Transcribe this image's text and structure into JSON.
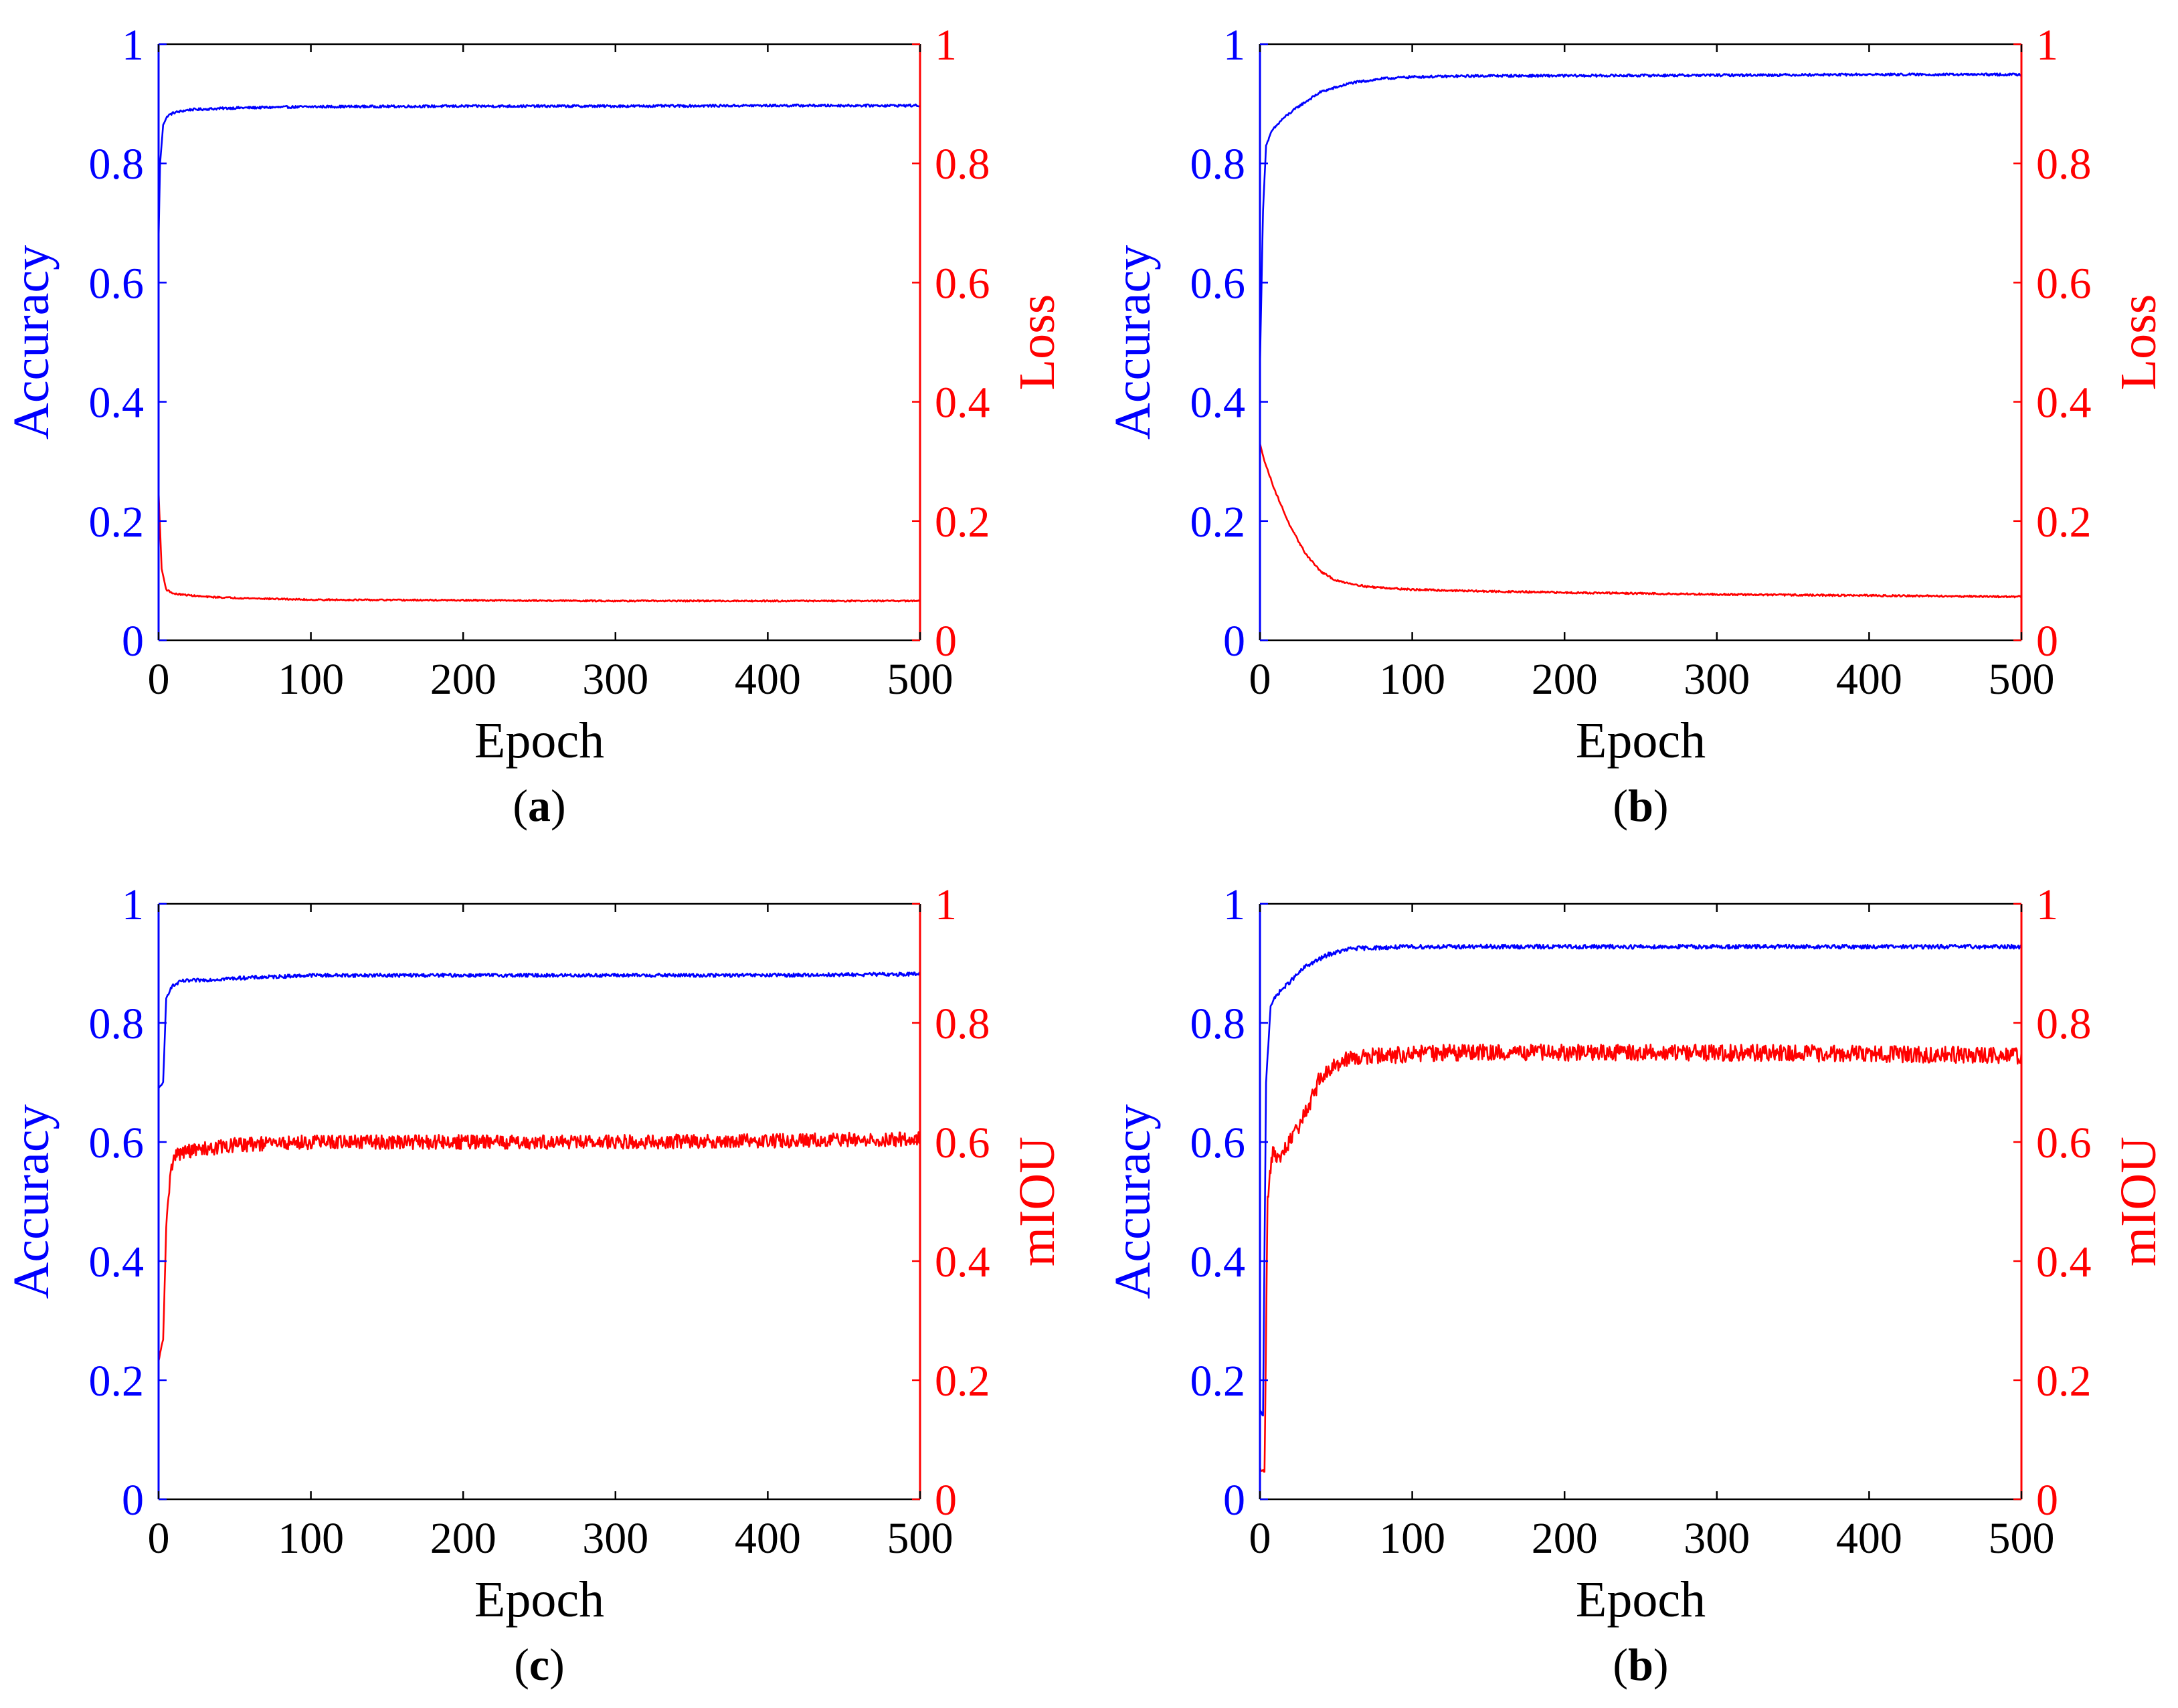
{
  "colors": {
    "left_axis": "#0000ff",
    "right_axis": "#ff0000",
    "frame": "#000000"
  },
  "chart_data": [
    {
      "type": "line",
      "panel_label": "a",
      "xlabel": "Epoch",
      "ylabel_left": "Accuracy",
      "ylabel_right": "Loss",
      "xlim": [
        0,
        500
      ],
      "ylim_left": [
        0,
        1
      ],
      "ylim_right": [
        0,
        1
      ],
      "x_ticks": [
        "0",
        "100",
        "200",
        "300",
        "400",
        "500"
      ],
      "y_ticks_left": [
        "0",
        "0.2",
        "0.4",
        "0.6",
        "0.8",
        "1"
      ],
      "y_ticks_right": [
        "0",
        "0.2",
        "0.4",
        "0.6",
        "0.8",
        "1"
      ],
      "series": [
        {
          "name": "Accuracy",
          "axis": "left",
          "color": "#0000ff",
          "noise": 0.002,
          "points": [
            [
              0,
              0.67
            ],
            [
              1,
              0.8
            ],
            [
              3,
              0.865
            ],
            [
              6,
              0.88
            ],
            [
              10,
              0.885
            ],
            [
              20,
              0.89
            ],
            [
              50,
              0.893
            ],
            [
              100,
              0.895
            ],
            [
              200,
              0.896
            ],
            [
              300,
              0.896
            ],
            [
              400,
              0.897
            ],
            [
              500,
              0.897
            ]
          ]
        },
        {
          "name": "Loss",
          "axis": "right",
          "color": "#ff0000",
          "noise": 0.0012,
          "points": [
            [
              0,
              0.25
            ],
            [
              2,
              0.12
            ],
            [
              5,
              0.085
            ],
            [
              10,
              0.078
            ],
            [
              30,
              0.073
            ],
            [
              50,
              0.071
            ],
            [
              100,
              0.068
            ],
            [
              200,
              0.067
            ],
            [
              300,
              0.066
            ],
            [
              400,
              0.066
            ],
            [
              500,
              0.066
            ]
          ]
        }
      ]
    },
    {
      "type": "line",
      "panel_label": "b",
      "xlabel": "Epoch",
      "ylabel_left": "Accuracy",
      "ylabel_right": "Loss",
      "xlim": [
        0,
        500
      ],
      "ylim_left": [
        0,
        1
      ],
      "ylim_right": [
        0,
        1
      ],
      "x_ticks": [
        "0",
        "100",
        "200",
        "300",
        "400",
        "500"
      ],
      "y_ticks_left": [
        "0",
        "0.2",
        "0.4",
        "0.6",
        "0.8",
        "1"
      ],
      "y_ticks_right": [
        "0",
        "0.2",
        "0.4",
        "0.6",
        "0.8",
        "1"
      ],
      "series": [
        {
          "name": "Accuracy",
          "axis": "left",
          "color": "#0000ff",
          "noise": 0.002,
          "points": [
            [
              0,
              0.46
            ],
            [
              2,
              0.72
            ],
            [
              4,
              0.83
            ],
            [
              8,
              0.855
            ],
            [
              15,
              0.875
            ],
            [
              25,
              0.895
            ],
            [
              40,
              0.92
            ],
            [
              60,
              0.935
            ],
            [
              80,
              0.942
            ],
            [
              100,
              0.945
            ],
            [
              150,
              0.947
            ],
            [
              200,
              0.947
            ],
            [
              300,
              0.948
            ],
            [
              400,
              0.949
            ],
            [
              500,
              0.949
            ]
          ]
        },
        {
          "name": "Loss",
          "axis": "right",
          "color": "#ff0000",
          "noise": 0.0015,
          "points": [
            [
              0,
              0.33
            ],
            [
              3,
              0.3
            ],
            [
              10,
              0.25
            ],
            [
              20,
              0.19
            ],
            [
              30,
              0.145
            ],
            [
              40,
              0.115
            ],
            [
              50,
              0.1
            ],
            [
              70,
              0.09
            ],
            [
              100,
              0.085
            ],
            [
              150,
              0.082
            ],
            [
              200,
              0.08
            ],
            [
              300,
              0.077
            ],
            [
              400,
              0.075
            ],
            [
              500,
              0.073
            ]
          ]
        }
      ]
    },
    {
      "type": "line",
      "panel_label": "c",
      "xlabel": "Epoch",
      "ylabel_left": "Accuracy",
      "ylabel_right": "mIOU",
      "xlim": [
        0,
        500
      ],
      "ylim_left": [
        0,
        1
      ],
      "ylim_right": [
        0,
        1
      ],
      "x_ticks": [
        "0",
        "100",
        "200",
        "300",
        "400",
        "500"
      ],
      "y_ticks_left": [
        "0",
        "0.2",
        "0.4",
        "0.6",
        "0.8",
        "1"
      ],
      "y_ticks_right": [
        "0",
        "0.2",
        "0.4",
        "0.6",
        "0.8",
        "1"
      ],
      "series": [
        {
          "name": "Accuracy",
          "axis": "left",
          "color": "#0000ff",
          "noise": 0.003,
          "points": [
            [
              0,
              0.69
            ],
            [
              3,
              0.7
            ],
            [
              5,
              0.84
            ],
            [
              8,
              0.86
            ],
            [
              15,
              0.87
            ],
            [
              50,
              0.875
            ],
            [
              100,
              0.88
            ],
            [
              200,
              0.88
            ],
            [
              300,
              0.88
            ],
            [
              400,
              0.88
            ],
            [
              500,
              0.882
            ]
          ]
        },
        {
          "name": "mIOU",
          "axis": "right",
          "color": "#ff0000",
          "noise": 0.012,
          "points": [
            [
              0,
              0.23
            ],
            [
              3,
              0.27
            ],
            [
              5,
              0.45
            ],
            [
              8,
              0.56
            ],
            [
              12,
              0.58
            ],
            [
              20,
              0.585
            ],
            [
              50,
              0.595
            ],
            [
              100,
              0.6
            ],
            [
              200,
              0.6
            ],
            [
              300,
              0.6
            ],
            [
              400,
              0.602
            ],
            [
              500,
              0.605
            ]
          ]
        }
      ]
    },
    {
      "type": "line",
      "panel_label": "b",
      "xlabel": "Epoch",
      "ylabel_left": "Accuracy",
      "ylabel_right": "mIOU",
      "xlim": [
        0,
        500
      ],
      "ylim_left": [
        0,
        1
      ],
      "ylim_right": [
        0,
        1
      ],
      "x_ticks": [
        "0",
        "100",
        "200",
        "300",
        "400",
        "500"
      ],
      "y_ticks_left": [
        "0",
        "0.2",
        "0.4",
        "0.6",
        "0.8",
        "1"
      ],
      "y_ticks_right": [
        "0",
        "0.2",
        "0.4",
        "0.6",
        "0.8",
        "1"
      ],
      "series": [
        {
          "name": "Accuracy",
          "axis": "left",
          "color": "#0000ff",
          "noise": 0.0035,
          "points": [
            [
              0,
              0.15
            ],
            [
              2,
              0.14
            ],
            [
              4,
              0.7
            ],
            [
              7,
              0.83
            ],
            [
              12,
              0.85
            ],
            [
              20,
              0.87
            ],
            [
              30,
              0.895
            ],
            [
              45,
              0.915
            ],
            [
              60,
              0.925
            ],
            [
              100,
              0.928
            ],
            [
              200,
              0.928
            ],
            [
              300,
              0.928
            ],
            [
              400,
              0.928
            ],
            [
              500,
              0.928
            ]
          ]
        },
        {
          "name": "mIOU",
          "axis": "right",
          "color": "#ff0000",
          "noise": 0.014,
          "points": [
            [
              0,
              0.05
            ],
            [
              3,
              0.05
            ],
            [
              5,
              0.5
            ],
            [
              8,
              0.58
            ],
            [
              12,
              0.57
            ],
            [
              20,
              0.6
            ],
            [
              30,
              0.65
            ],
            [
              40,
              0.71
            ],
            [
              55,
              0.74
            ],
            [
              80,
              0.745
            ],
            [
              120,
              0.75
            ],
            [
              200,
              0.75
            ],
            [
              300,
              0.75
            ],
            [
              400,
              0.748
            ],
            [
              500,
              0.745
            ]
          ]
        }
      ]
    }
  ]
}
